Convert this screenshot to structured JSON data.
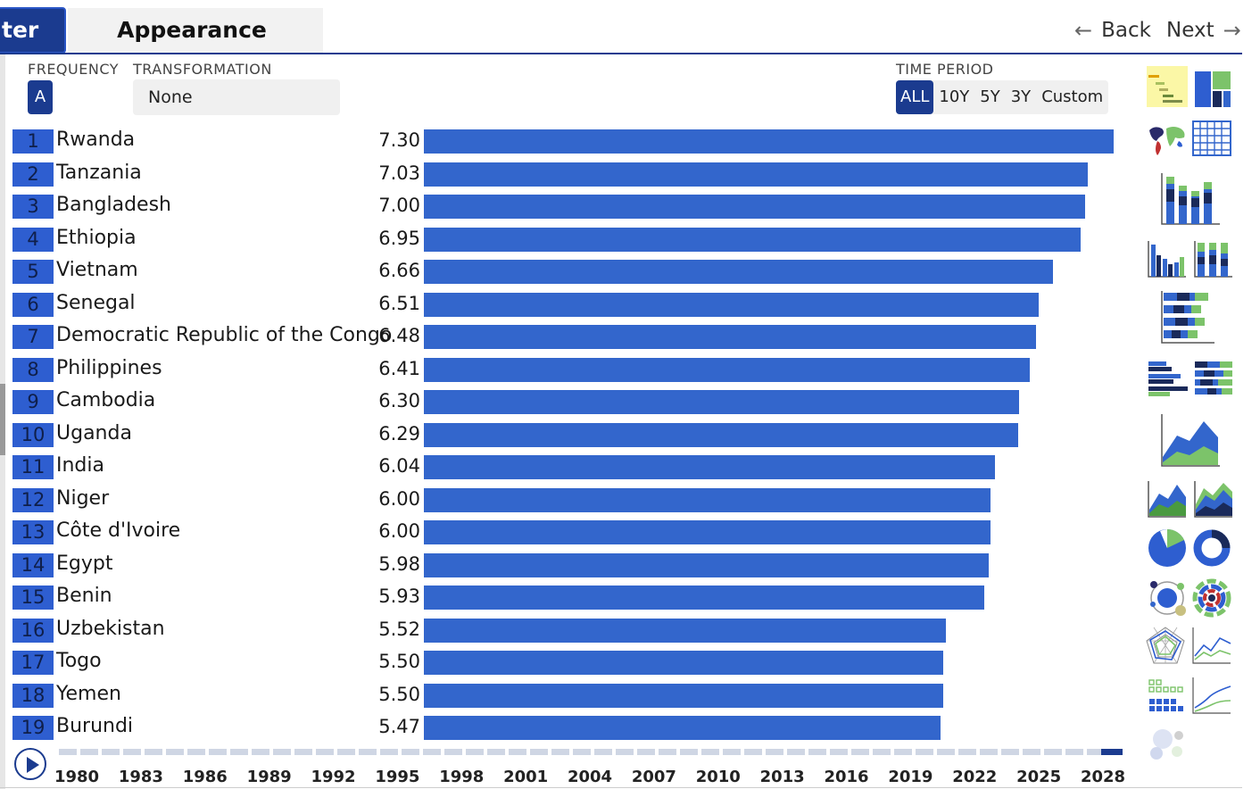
{
  "tabs": {
    "filter_label": "ter",
    "appearance_label": "Appearance"
  },
  "nav": {
    "back_label": "Back",
    "next_label": "Next",
    "back_arrow": "←",
    "next_arrow": "→"
  },
  "controls": {
    "frequency_label": "FREQUENCY",
    "frequency_value": "A",
    "transformation_label": "TRANSFORMATION",
    "transformation_value": "None",
    "time_period_label": "TIME PERIOD",
    "time_period_options": [
      "ALL",
      "10Y",
      "5Y",
      "3Y",
      "Custom"
    ],
    "time_period_selected": "ALL"
  },
  "colors": {
    "accent": "#1b3b8f",
    "bar": "#3366cc",
    "rank_box": "#2e5ed0",
    "selected_icon_bg": "#fbf7a6"
  },
  "chart_data": {
    "type": "bar",
    "orientation": "horizontal",
    "title": "",
    "xlabel": "",
    "ylabel": "",
    "xlim": [
      0,
      7.3
    ],
    "grid": false,
    "ranks": [
      1,
      2,
      3,
      4,
      5,
      6,
      7,
      8,
      9,
      10,
      11,
      12,
      13,
      14,
      15,
      16,
      17,
      18,
      19
    ],
    "categories": [
      "Rwanda",
      "Tanzania",
      "Bangladesh",
      "Ethiopia",
      "Vietnam",
      "Senegal",
      "Democratic Republic of the Congo",
      "Philippines",
      "Cambodia",
      "Uganda",
      "India",
      "Niger",
      "Côte d'Ivoire",
      "Egypt",
      "Benin",
      "Uzbekistan",
      "Togo",
      "Yemen",
      "Burundi"
    ],
    "values": [
      7.3,
      7.03,
      7.0,
      6.95,
      6.66,
      6.51,
      6.48,
      6.41,
      6.3,
      6.29,
      6.04,
      6.0,
      6.0,
      5.98,
      5.93,
      5.52,
      5.5,
      5.5,
      5.47
    ],
    "value_labels": [
      "7.30",
      "7.03",
      "7.00",
      "6.95",
      "6.66",
      "6.51",
      "6.48",
      "6.41",
      "6.30",
      "6.29",
      "6.04",
      "6.00",
      "6.00",
      "5.98",
      "5.93",
      "5.52",
      "5.50",
      "5.50",
      "5.47"
    ]
  },
  "timeline": {
    "years": [
      "1980",
      "1983",
      "1986",
      "1989",
      "1992",
      "1995",
      "1998",
      "2001",
      "2004",
      "2007",
      "2010",
      "2013",
      "2016",
      "2019",
      "2022",
      "2025",
      "2028"
    ],
    "selected_year_position": "end",
    "play_icon": "play-icon"
  },
  "chart_types": [
    {
      "id": "ranking-bar",
      "icon": "ranking-bar-icon",
      "selected": true
    },
    {
      "id": "treemap",
      "icon": "treemap-icon",
      "selected": false
    },
    {
      "id": "world-map",
      "icon": "world-map-icon",
      "selected": false
    },
    {
      "id": "table",
      "icon": "table-icon",
      "selected": false
    },
    {
      "id": "stacked-column",
      "icon": "stacked-column-icon",
      "selected": false
    },
    {
      "id": "grouped-column",
      "icon": "grouped-column-icon",
      "selected": false
    },
    {
      "id": "stacked-percent-column",
      "icon": "stacked-percent-column-icon",
      "selected": false
    },
    {
      "id": "stacked-bar",
      "icon": "stacked-bar-icon",
      "selected": false
    },
    {
      "id": "grouped-bar",
      "icon": "grouped-bar-icon",
      "selected": false
    },
    {
      "id": "stacked-percent-bar",
      "icon": "stacked-percent-bar-icon",
      "selected": false
    },
    {
      "id": "stacked-area",
      "icon": "stacked-area-icon",
      "selected": false
    },
    {
      "id": "area",
      "icon": "area-icon",
      "selected": false
    },
    {
      "id": "area-overlap",
      "icon": "area-overlap-icon",
      "selected": false
    },
    {
      "id": "pie",
      "icon": "pie-icon",
      "selected": false
    },
    {
      "id": "donut",
      "icon": "donut-icon",
      "selected": false
    },
    {
      "id": "network",
      "icon": "network-icon",
      "selected": false
    },
    {
      "id": "sunburst",
      "icon": "sunburst-icon",
      "selected": false
    },
    {
      "id": "radar",
      "icon": "radar-icon",
      "selected": false
    },
    {
      "id": "line",
      "icon": "line-icon",
      "selected": false
    },
    {
      "id": "dot-grid",
      "icon": "dot-grid-icon",
      "selected": false
    },
    {
      "id": "line-multi",
      "icon": "line-multi-icon",
      "selected": false
    },
    {
      "id": "bubble",
      "icon": "bubble-icon",
      "selected": false
    }
  ]
}
